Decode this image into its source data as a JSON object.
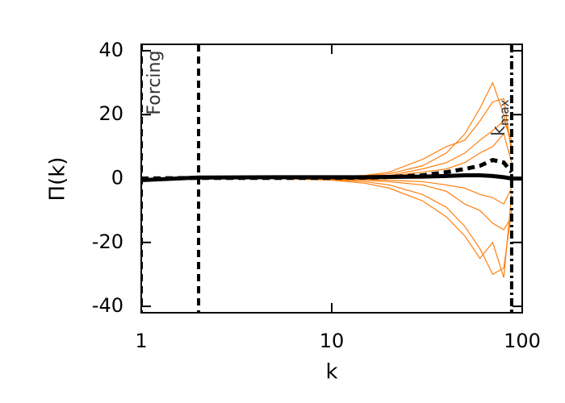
{
  "chart_data": {
    "type": "line",
    "xlabel": "k",
    "ylabel": "Π(k)",
    "xscale": "log",
    "xlim": [
      1,
      100
    ],
    "ylim": [
      -42,
      42
    ],
    "xticks": [
      1,
      10,
      100
    ],
    "yticks": [
      -40,
      -20,
      0,
      20,
      40
    ],
    "x": [
      1,
      2,
      5,
      10,
      15,
      20,
      30,
      40,
      50,
      60,
      70,
      80,
      88,
      100
    ],
    "series": [
      {
        "color": "#ff7f0e",
        "style": "solid",
        "values": [
          0,
          0,
          0,
          0.3,
          0.8,
          1.5,
          4,
          8,
          14,
          22,
          30,
          20,
          10,
          null
        ]
      },
      {
        "color": "#ff7f0e",
        "style": "solid",
        "values": [
          0,
          0,
          0,
          -0.3,
          -1,
          -2,
          -5,
          -9,
          -15,
          -22,
          -30,
          -28,
          -10,
          null
        ]
      },
      {
        "color": "#ff7f0e",
        "style": "solid",
        "values": [
          0,
          0,
          0,
          0.5,
          1,
          2,
          6,
          10,
          12,
          18,
          24,
          25,
          8,
          null
        ]
      },
      {
        "color": "#ff7f0e",
        "style": "solid",
        "values": [
          0,
          0,
          0,
          -0.5,
          -1.5,
          -3,
          -7,
          -12,
          -18,
          -25,
          -20,
          -31,
          -5,
          null
        ]
      },
      {
        "color": "#ff7f0e",
        "style": "solid",
        "values": [
          0,
          0,
          0,
          0.2,
          0.5,
          1,
          3,
          5,
          8,
          12,
          15,
          18,
          12,
          null
        ]
      },
      {
        "color": "#ff7f0e",
        "style": "solid",
        "values": [
          0,
          0,
          0,
          -0.2,
          -0.5,
          -1,
          -2,
          -4,
          -8,
          -10,
          -14,
          -16,
          -12,
          null
        ]
      },
      {
        "color": "#ff7f0e",
        "style": "solid",
        "values": [
          0,
          0,
          0,
          0.2,
          0.4,
          0.8,
          2,
          3,
          5,
          8,
          10,
          14,
          5,
          null
        ]
      },
      {
        "color": "#ff7f0e",
        "style": "solid",
        "values": [
          0,
          0,
          0,
          -0.1,
          -0.3,
          -0.5,
          -1,
          -2,
          -3,
          -5,
          -6,
          -8,
          -3,
          null
        ]
      },
      {
        "color": "#000000",
        "style": "dashed",
        "values": [
          0,
          0.2,
          0.2,
          0.2,
          0.3,
          0.5,
          1,
          2,
          3,
          4,
          5.8,
          5,
          2,
          null
        ]
      },
      {
        "color": "#000000",
        "style": "solid",
        "values": [
          -0.5,
          0.3,
          0.4,
          0.4,
          0.4,
          0.5,
          0.6,
          0.8,
          1,
          1,
          0.8,
          0.4,
          0,
          0
        ]
      }
    ],
    "vlines": [
      {
        "x": 1,
        "style": "dashed"
      },
      {
        "x": 2,
        "style": "dashed"
      },
      {
        "x": 88,
        "style": "dashdot"
      }
    ],
    "annotations": [
      {
        "text": "Forcing",
        "x": 1.18,
        "y": 30
      },
      {
        "text": "k",
        "subscript": "max",
        "x": 76,
        "y": 19
      }
    ]
  }
}
